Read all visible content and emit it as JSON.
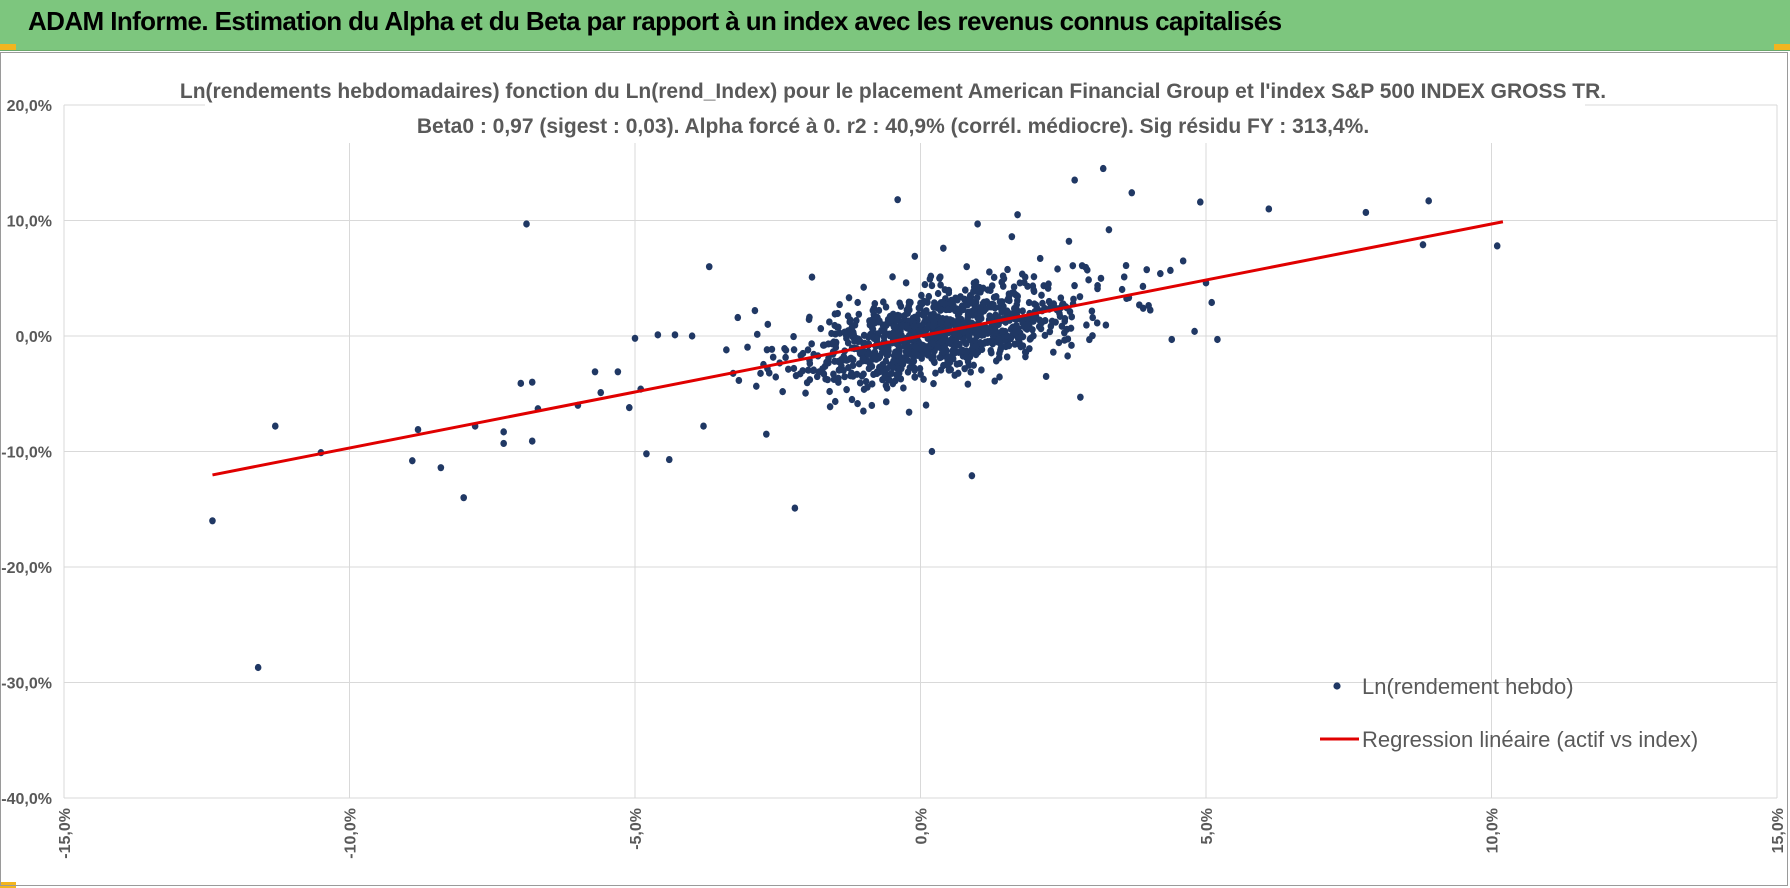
{
  "banner": {
    "title": "ADAM Informe. Estimation du Alpha et du Beta par rapport à un index avec les revenus connus capitalisés"
  },
  "colors": {
    "banner": "#7dc67e",
    "points": "#203864",
    "regression": "#e00000",
    "grid": "#d9d9d9",
    "text": "#595959"
  },
  "chart_data": {
    "type": "scatter",
    "title": "Ln(rendements hebdomadaires) fonction du Ln(rend_Index) pour le placement American Financial Group  et l'index S&P 500 INDEX GROSS TR.",
    "subtitle": "Beta0 : 0,97  (sigest : 0,03).  Alpha forcé à 0. r2 : 40,9% (corrél. médiocre). Sig résidu FY : 313,4%.",
    "xlim": [
      -15,
      15
    ],
    "ylim": [
      -40,
      20
    ],
    "x_ticks": [
      "-15,0%",
      "-10,0%",
      "-5,0%",
      "0,0%",
      "5,0%",
      "10,0%",
      "15,0%"
    ],
    "y_ticks": [
      "20,0%",
      "10,0%",
      "0,0%",
      "-10,0%",
      "-20,0%",
      "-30,0%",
      "-40,0%"
    ],
    "grid": true,
    "legend_position": "bottom-right",
    "legend": [
      "Ln(rendement hebdo)",
      "Regression linéaire (actif vs index)"
    ],
    "regression": {
      "slope": 0.97,
      "intercept": 0,
      "x_range": [
        -12.4,
        10.2
      ]
    },
    "series": [
      {
        "name": "Ln(rendement hebdo)",
        "points": [
          [
            -12.4,
            -16
          ],
          [
            -11.6,
            -28.7
          ],
          [
            -11.3,
            -7.8
          ],
          [
            -10.5,
            -10.1
          ],
          [
            -8.9,
            -10.8
          ],
          [
            -8.8,
            -8.1
          ],
          [
            -8.4,
            -11.4
          ],
          [
            -8,
            -14
          ],
          [
            -7.8,
            -7.8
          ],
          [
            -7.3,
            -8.3
          ],
          [
            -7.3,
            -9.3
          ],
          [
            -7,
            -4.1
          ],
          [
            -6.9,
            9.7
          ],
          [
            -6.8,
            -4
          ],
          [
            -6.8,
            -9.1
          ],
          [
            -6.7,
            -6.3
          ],
          [
            -6,
            -6
          ],
          [
            -5.7,
            -3.1
          ],
          [
            -5.6,
            -4.9
          ],
          [
            -5.3,
            -3.1
          ],
          [
            -5.1,
            -6.2
          ],
          [
            -5,
            -0.2
          ],
          [
            -4.9,
            -4.6
          ],
          [
            -4.8,
            -10.2
          ],
          [
            -4.6,
            0.1
          ],
          [
            -4.4,
            -10.7
          ],
          [
            -4.3,
            0.1
          ],
          [
            -4,
            0
          ],
          [
            -3.8,
            -7.8
          ],
          [
            -3.7,
            6
          ],
          [
            -3.4,
            -1.2
          ],
          [
            -3.2,
            1.6
          ],
          [
            -2.9,
            2.2
          ],
          [
            -2.7,
            -8.5
          ],
          [
            -2.2,
            -14.9
          ],
          [
            -1.9,
            5.1
          ],
          [
            -1.2,
            -5.5
          ],
          [
            -1.1,
            2.9
          ],
          [
            -1,
            -6.5
          ],
          [
            -0.8,
            -1.4
          ],
          [
            -0.8,
            2.8
          ],
          [
            -0.6,
            -5.7
          ],
          [
            -0.5,
            1.1
          ],
          [
            -0.4,
            11.8
          ],
          [
            -0.3,
            -4.5
          ],
          [
            -0.2,
            -6.6
          ],
          [
            -0.1,
            6.9
          ],
          [
            0.2,
            -10
          ],
          [
            0.4,
            -0.8
          ],
          [
            0.4,
            7.6
          ],
          [
            0.6,
            -3.4
          ],
          [
            0.7,
            3.4
          ],
          [
            0.9,
            -12.1
          ],
          [
            1,
            9.7
          ],
          [
            1.3,
            -3.9
          ],
          [
            1.6,
            8.6
          ],
          [
            1.7,
            10.5
          ],
          [
            2,
            2.1
          ],
          [
            2.2,
            -3.5
          ],
          [
            2.4,
            5.8
          ],
          [
            2.6,
            8.2
          ],
          [
            2.7,
            13.5
          ],
          [
            2.8,
            -5.3
          ],
          [
            3.1,
            4.1
          ],
          [
            3.2,
            14.5
          ],
          [
            3.3,
            9.2
          ],
          [
            3.6,
            6.1
          ],
          [
            3.7,
            12.4
          ],
          [
            3.9,
            2.4
          ],
          [
            4.2,
            5.4
          ],
          [
            4.4,
            -0.3
          ],
          [
            4.6,
            6.5
          ],
          [
            4.8,
            0.4
          ],
          [
            4.9,
            11.6
          ],
          [
            5,
            4.6
          ],
          [
            5.1,
            2.9
          ],
          [
            5.2,
            -0.3
          ],
          [
            6.1,
            11
          ],
          [
            7.8,
            10.7
          ],
          [
            8.8,
            7.9
          ],
          [
            8.9,
            11.7
          ],
          [
            10.1,
            7.8
          ]
        ]
      }
    ]
  }
}
